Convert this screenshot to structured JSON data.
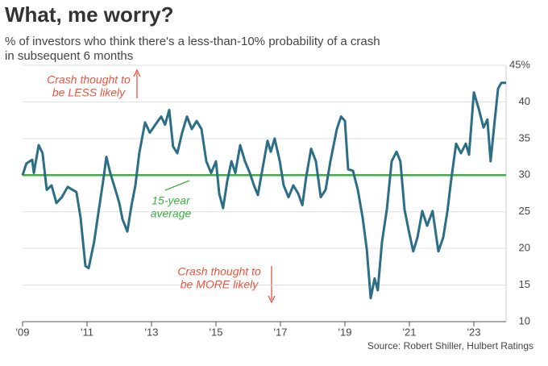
{
  "chart_data": {
    "type": "line",
    "title": "What, me worry?",
    "subtitle": [
      "% of investors who think there's a less-than-10% probability of a crash",
      "in subsequent 6 months"
    ],
    "source": "Source: Robert Shiller, Hulbert Ratings",
    "annotations": [
      {
        "lines": [
          "Crash thought to",
          "be LESS likely"
        ],
        "color": "#e8553e"
      },
      {
        "lines": [
          "15-year",
          "average"
        ],
        "color": "#3cb043"
      },
      {
        "lines": [
          "Crash thought to",
          "be MORE likely"
        ],
        "color": "#e8553e"
      }
    ],
    "average": 30,
    "average_color": "#3cb043",
    "x": [
      2009.0,
      2009.12,
      2009.3,
      2009.35,
      2009.5,
      2009.62,
      2009.75,
      2009.9,
      2010.05,
      2010.22,
      2010.4,
      2010.55,
      2010.67,
      2010.8,
      2010.95,
      2011.05,
      2011.22,
      2011.35,
      2011.5,
      2011.6,
      2011.72,
      2011.88,
      2012.0,
      2012.1,
      2012.25,
      2012.38,
      2012.5,
      2012.62,
      2012.8,
      2012.95,
      2013.12,
      2013.3,
      2013.42,
      2013.55,
      2013.67,
      2013.8,
      2013.95,
      2014.1,
      2014.25,
      2014.4,
      2014.55,
      2014.7,
      2014.85,
      2015.0,
      2015.1,
      2015.22,
      2015.35,
      2015.48,
      2015.6,
      2015.75,
      2015.9,
      2016.05,
      2016.18,
      2016.3,
      2016.42,
      2016.6,
      2016.7,
      2016.82,
      2016.98,
      2017.1,
      2017.25,
      2017.4,
      2017.55,
      2017.68,
      2017.8,
      2017.95,
      2018.1,
      2018.25,
      2018.4,
      2018.55,
      2018.75,
      2018.88,
      2019.0,
      2019.1,
      2019.25,
      2019.4,
      2019.55,
      2019.68,
      2019.8,
      2019.92,
      2020.02,
      2020.15,
      2020.3,
      2020.45,
      2020.6,
      2020.72,
      2020.85,
      2021.0,
      2021.12,
      2021.25,
      2021.4,
      2021.55,
      2021.72,
      2021.9,
      2022.05,
      2022.18,
      2022.3,
      2022.45,
      2022.6,
      2022.75,
      2022.85,
      2023.0,
      2023.15,
      2023.3,
      2023.42,
      2023.52,
      2023.62,
      2023.75,
      2023.85,
      2024.0
    ],
    "series": [
      {
        "name": "Investors",
        "color": "#2b6e85",
        "values": [
          30,
          31.6,
          32.1,
          30.3,
          34.1,
          33,
          28,
          28.6,
          26.2,
          27,
          28.4,
          28,
          27.7,
          24.2,
          17.6,
          17.3,
          20.9,
          24.8,
          29.2,
          32.5,
          30.3,
          28,
          26.2,
          24,
          22.3,
          25.9,
          28.6,
          33,
          37.2,
          35.8,
          36.9,
          38,
          36.9,
          38.9,
          33.9,
          33,
          35.8,
          38,
          36.3,
          37.4,
          36.3,
          31.9,
          30.3,
          31.9,
          27.5,
          25.5,
          29.2,
          31.9,
          30.3,
          34.1,
          31.9,
          30.3,
          28.6,
          27.3,
          30.3,
          34.7,
          33.2,
          35,
          31.9,
          28.6,
          27,
          28.6,
          27.5,
          25.9,
          29.8,
          33.6,
          31.9,
          27,
          28,
          31.9,
          36.3,
          38,
          37.4,
          30.8,
          30.6,
          28,
          24.2,
          19.8,
          13.2,
          15.9,
          14.3,
          20.9,
          25.3,
          31.9,
          33.2,
          31.9,
          25.3,
          22,
          19.6,
          21.5,
          25.1,
          23.1,
          25.1,
          19.6,
          21.5,
          25.1,
          29.5,
          34.3,
          33,
          34.3,
          32.8,
          41.3,
          39.1,
          36.5,
          37.6,
          31.9,
          36.3,
          41.8,
          42.6,
          42.6
        ]
      }
    ],
    "xlim": [
      2009,
      2024
    ],
    "xticks": [
      {
        "value": 2009,
        "label": "'09"
      },
      {
        "value": 2011,
        "label": "'11"
      },
      {
        "value": 2013,
        "label": "'13"
      },
      {
        "value": 2015,
        "label": "'15"
      },
      {
        "value": 2017,
        "label": "'17"
      },
      {
        "value": 2019,
        "label": "'19"
      },
      {
        "value": 2021,
        "label": "'21"
      },
      {
        "value": 2023,
        "label": "'23"
      }
    ],
    "ylim": [
      10,
      45
    ],
    "yticks": [
      10,
      15,
      20,
      25,
      30,
      35,
      40,
      {
        "value": 45,
        "label": "45%"
      }
    ],
    "grid": true
  }
}
